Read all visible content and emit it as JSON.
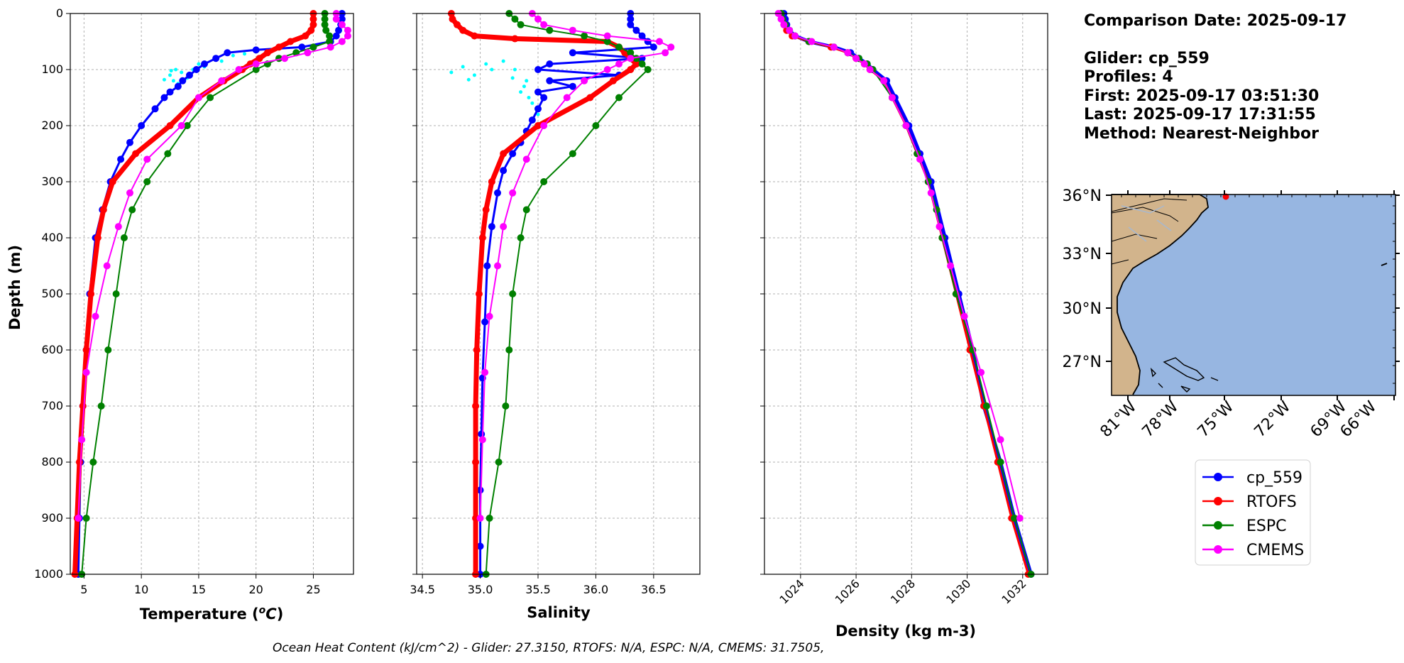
{
  "chart_data": [
    {
      "type": "line",
      "xlabel": "Temperature (°C)",
      "ylabel": "Depth (m)",
      "xlim": [
        3.8,
        28.5
      ],
      "ylim": [
        1000,
        0
      ],
      "xticks": [
        5,
        10,
        15,
        20,
        25
      ],
      "yticks": [
        0,
        100,
        200,
        300,
        400,
        500,
        600,
        700,
        800,
        900,
        1000
      ],
      "scatter_cyan": [
        [
          12.5,
          110
        ],
        [
          13,
          100
        ],
        [
          12.8,
          120
        ],
        [
          13.5,
          105
        ],
        [
          15,
          90
        ],
        [
          16.5,
          80
        ],
        [
          18,
          75
        ],
        [
          14,
          115
        ],
        [
          12,
          118
        ],
        [
          15.5,
          95
        ],
        [
          17,
          85
        ],
        [
          19,
          72
        ],
        [
          14.5,
          100
        ],
        [
          13.2,
          125
        ],
        [
          12.6,
          102
        ]
      ],
      "series": [
        {
          "name": "cp_559",
          "color": "#0000ff",
          "width": 3,
          "depth": [
            0,
            10,
            20,
            30,
            40,
            50,
            60,
            65,
            70,
            80,
            90,
            100,
            110,
            120,
            130,
            140,
            150,
            170,
            200,
            230,
            260,
            300,
            350,
            400,
            500,
            600,
            700,
            800,
            900,
            1000
          ],
          "values": [
            27.5,
            27.5,
            27.4,
            27.2,
            27,
            26.5,
            24,
            20,
            17.5,
            16.5,
            15.5,
            14.8,
            14.2,
            13.6,
            13.2,
            12.5,
            12,
            11.2,
            10,
            9,
            8.2,
            7.3,
            6.6,
            6,
            5.5,
            5.2,
            4.9,
            4.7,
            4.6,
            4.5
          ]
        },
        {
          "name": "RTOFS",
          "color": "#ff0000",
          "width": 7,
          "depth": [
            0,
            10,
            20,
            30,
            40,
            50,
            60,
            70,
            80,
            90,
            100,
            120,
            150,
            200,
            250,
            300,
            350,
            400,
            500,
            600,
            700,
            800,
            900,
            1000
          ],
          "values": [
            25,
            25,
            25,
            24.8,
            24.3,
            23,
            22,
            21,
            20.3,
            19.5,
            18.8,
            17.2,
            15,
            12.5,
            9.5,
            7.5,
            6.7,
            6.2,
            5.6,
            5.2,
            4.9,
            4.6,
            4.4,
            4.2
          ]
        },
        {
          "name": "ESPC",
          "color": "#008000",
          "width": 2,
          "depth": [
            0,
            10,
            20,
            30,
            40,
            50,
            60,
            70,
            80,
            90,
            100,
            150,
            200,
            250,
            300,
            350,
            400,
            500,
            600,
            700,
            800,
            900,
            1000
          ],
          "values": [
            26,
            26,
            26,
            26.1,
            26.4,
            26.4,
            25,
            23.5,
            22,
            21,
            20,
            16,
            14,
            12.3,
            10.5,
            9.2,
            8.5,
            7.8,
            7.1,
            6.5,
            5.8,
            5.2,
            4.8
          ]
        },
        {
          "name": "CMEMS",
          "color": "#ff00ff",
          "width": 2,
          "depth": [
            0,
            10,
            20,
            30,
            40,
            50,
            60,
            70,
            80,
            90,
            100,
            120,
            150,
            200,
            260,
            320,
            380,
            450,
            540,
            640,
            760,
            900
          ],
          "values": [
            27,
            27,
            27.5,
            28,
            28,
            27.5,
            26.5,
            24.5,
            22.5,
            20,
            18.5,
            17,
            15,
            13.5,
            10.5,
            9,
            8,
            7,
            6,
            5.2,
            4.8,
            4.5
          ]
        }
      ]
    },
    {
      "type": "line",
      "xlabel": "Salinity",
      "ylabel": "",
      "xlim": [
        34.45,
        36.9
      ],
      "ylim": [
        1000,
        0
      ],
      "xticks": [
        34.5,
        35.0,
        35.5,
        36.0,
        36.5
      ],
      "xtick_labels": [
        "34.5",
        "35.0",
        "35.5",
        "36.0",
        "36.5"
      ],
      "scatter_cyan": [
        [
          34.75,
          105
        ],
        [
          34.85,
          95
        ],
        [
          34.95,
          110
        ],
        [
          35.05,
          90
        ],
        [
          35.2,
          85
        ],
        [
          35.3,
          100
        ],
        [
          35.4,
          120
        ],
        [
          35.35,
          140
        ],
        [
          35.45,
          160
        ],
        [
          35.5,
          180
        ],
        [
          35.38,
          130
        ],
        [
          35.28,
          115
        ],
        [
          35.1,
          100
        ],
        [
          34.9,
          118
        ],
        [
          35.42,
          150
        ],
        [
          35.48,
          200
        ]
      ],
      "series": [
        {
          "name": "cp_559",
          "color": "#0000ff",
          "width": 3,
          "depth": [
            0,
            10,
            20,
            30,
            40,
            50,
            60,
            70,
            80,
            90,
            100,
            110,
            120,
            130,
            140,
            150,
            170,
            190,
            210,
            230,
            250,
            280,
            320,
            380,
            450,
            550,
            650,
            750,
            850,
            950,
            1000
          ],
          "values": [
            36.3,
            36.3,
            36.3,
            36.35,
            36.4,
            36.45,
            36.5,
            35.8,
            36.4,
            35.6,
            35.5,
            36.2,
            35.6,
            35.8,
            35.5,
            35.55,
            35.5,
            35.45,
            35.4,
            35.35,
            35.28,
            35.2,
            35.15,
            35.1,
            35.06,
            35.04,
            35.02,
            35.01,
            35,
            35,
            35
          ]
        },
        {
          "name": "RTOFS",
          "color": "#ff0000",
          "width": 7,
          "depth": [
            0,
            10,
            20,
            30,
            40,
            45,
            50,
            60,
            70,
            80,
            90,
            100,
            120,
            150,
            200,
            250,
            300,
            350,
            400,
            500,
            600,
            700,
            800,
            900,
            1000
          ],
          "values": [
            34.75,
            34.76,
            34.8,
            34.85,
            34.95,
            35.3,
            36.1,
            36.2,
            36.25,
            36.3,
            36.35,
            36.3,
            36.15,
            35.95,
            35.5,
            35.2,
            35.1,
            35.05,
            35.02,
            34.99,
            34.97,
            34.96,
            34.96,
            34.96,
            34.96
          ]
        },
        {
          "name": "ESPC",
          "color": "#008000",
          "width": 2,
          "depth": [
            0,
            10,
            20,
            30,
            40,
            50,
            60,
            70,
            80,
            90,
            100,
            150,
            200,
            250,
            300,
            350,
            400,
            500,
            600,
            700,
            800,
            900,
            1000
          ],
          "values": [
            35.25,
            35.3,
            35.35,
            35.6,
            35.9,
            36.1,
            36.2,
            36.3,
            36.35,
            36.4,
            36.45,
            36.2,
            36,
            35.8,
            35.55,
            35.4,
            35.35,
            35.28,
            35.25,
            35.22,
            35.16,
            35.08,
            35.05
          ]
        },
        {
          "name": "CMEMS",
          "color": "#ff00ff",
          "width": 2,
          "depth": [
            0,
            10,
            20,
            30,
            40,
            50,
            60,
            70,
            80,
            90,
            100,
            120,
            150,
            200,
            260,
            320,
            380,
            450,
            540,
            640,
            760,
            900
          ],
          "values": [
            35.45,
            35.5,
            35.55,
            35.8,
            36.1,
            36.55,
            36.65,
            36.6,
            36.3,
            36.2,
            36.1,
            35.9,
            35.75,
            35.55,
            35.4,
            35.28,
            35.2,
            35.15,
            35.08,
            35.04,
            35.02,
            35
          ]
        }
      ]
    },
    {
      "type": "line",
      "xlabel": "Density (kg m-3)",
      "ylabel": "",
      "xlim": [
        1022.7,
        1032.9
      ],
      "ylim": [
        1000,
        0
      ],
      "xticks": [
        1024,
        1026,
        1028,
        1030,
        1032
      ],
      "series": [
        {
          "name": "cp_559",
          "color": "#0000ff",
          "width": 5,
          "depth": [
            0,
            10,
            20,
            30,
            40,
            50,
            60,
            70,
            80,
            90,
            100,
            120,
            150,
            200,
            250,
            300,
            400,
            500,
            600,
            700,
            800,
            900,
            1000
          ],
          "values": [
            1023.4,
            1023.45,
            1023.5,
            1023.6,
            1023.8,
            1024.3,
            1025.2,
            1025.8,
            1026.1,
            1026.4,
            1026.6,
            1027.1,
            1027.4,
            1027.9,
            1028.3,
            1028.7,
            1029.2,
            1029.7,
            1030.2,
            1030.6,
            1031.2,
            1031.7,
            1032.3
          ]
        },
        {
          "name": "RTOFS",
          "color": "#ff0000",
          "width": 3,
          "depth": [
            0,
            10,
            20,
            30,
            40,
            50,
            60,
            70,
            80,
            90,
            100,
            120,
            150,
            200,
            250,
            300,
            400,
            500,
            600,
            700,
            800,
            900,
            1000
          ],
          "values": [
            1023.3,
            1023.35,
            1023.4,
            1023.5,
            1023.7,
            1024.3,
            1025.1,
            1025.7,
            1026,
            1026.3,
            1026.5,
            1027,
            1027.3,
            1027.8,
            1028.2,
            1028.6,
            1029.1,
            1029.6,
            1030.1,
            1030.6,
            1031.1,
            1031.6,
            1032.2
          ]
        },
        {
          "name": "ESPC",
          "color": "#008000",
          "width": 2,
          "depth": [
            0,
            10,
            20,
            30,
            40,
            50,
            60,
            70,
            80,
            90,
            100,
            150,
            200,
            250,
            300,
            350,
            400,
            500,
            600,
            700,
            800,
            900,
            1000
          ],
          "values": [
            1023.3,
            1023.35,
            1023.45,
            1023.6,
            1023.8,
            1024.3,
            1025.2,
            1025.7,
            1026.1,
            1026.4,
            1026.6,
            1027.3,
            1027.8,
            1028.2,
            1028.6,
            1028.9,
            1029.1,
            1029.6,
            1030.2,
            1030.7,
            1031.2,
            1031.7,
            1032.3
          ]
        },
        {
          "name": "CMEMS",
          "color": "#ff00ff",
          "width": 2,
          "depth": [
            0,
            10,
            20,
            30,
            40,
            50,
            60,
            70,
            80,
            90,
            100,
            120,
            150,
            200,
            260,
            320,
            380,
            450,
            540,
            640,
            760,
            900
          ],
          "values": [
            1023.2,
            1023.3,
            1023.4,
            1023.6,
            1023.8,
            1024.4,
            1025.2,
            1025.7,
            1026,
            1026.3,
            1026.5,
            1027,
            1027.3,
            1027.8,
            1028.3,
            1028.7,
            1029,
            1029.4,
            1029.9,
            1030.5,
            1031.2,
            1031.9
          ]
        }
      ]
    }
  ],
  "info": {
    "comparison_date": "Comparison Date: 2025-09-17",
    "glider": "Glider: cp_559",
    "profiles": "Profiles: 4",
    "first": "First: 2025-09-17 03:51:30",
    "last": "Last: 2025-09-17 17:31:55",
    "method": "Method: Nearest-Neighbor"
  },
  "map": {
    "lat_labels": [
      "36°N",
      "33°N",
      "30°N",
      "27°N"
    ],
    "lon_labels": [
      "81°W",
      "78°W",
      "75°W",
      "72°W",
      "69°W",
      "66°W"
    ],
    "land_color": "#d2b48c",
    "ocean_color": "#97b6e1",
    "marker_color": "#ff0000"
  },
  "legend": [
    "cp_559",
    "RTOFS",
    "ESPC",
    "CMEMS"
  ],
  "footer": "Ocean Heat Content (kJ/cm^2) - Glider: 27.3150,  RTOFS: N/A,  ESPC: N/A,  CMEMS: 31.7505,"
}
